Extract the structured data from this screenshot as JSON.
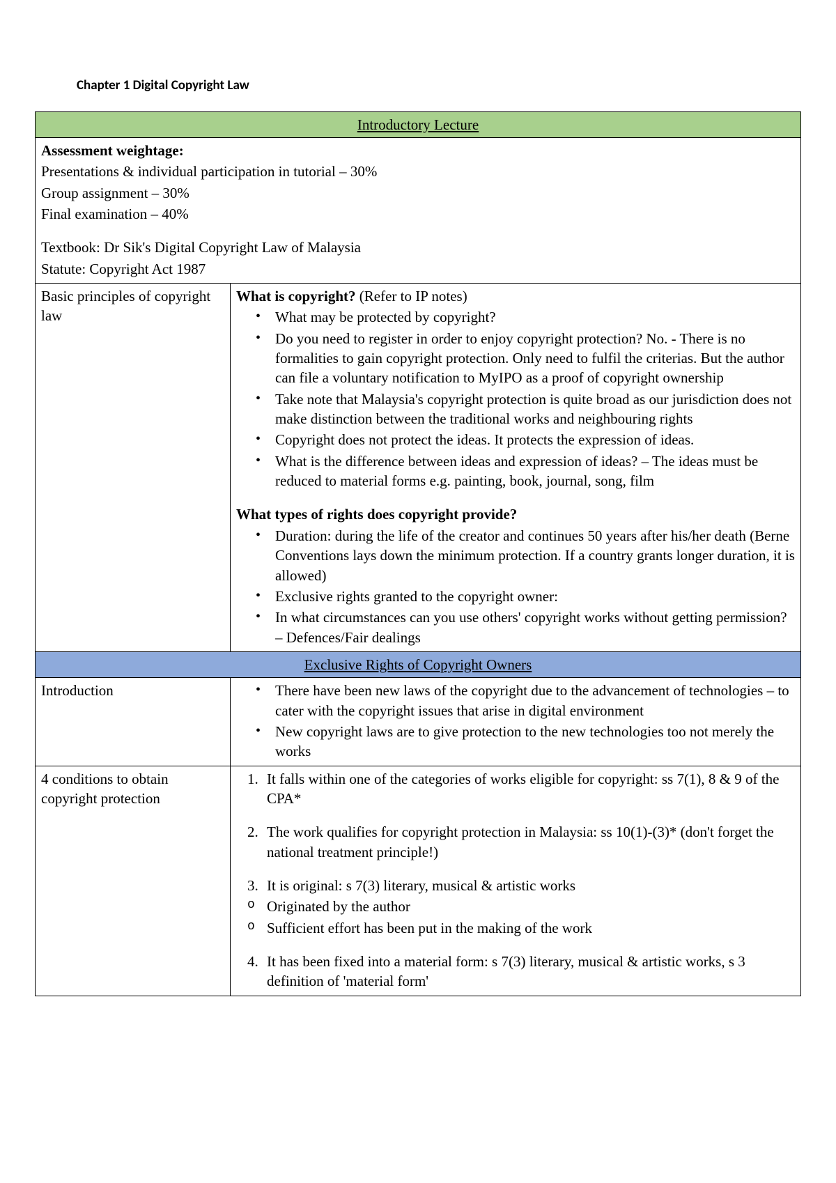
{
  "chapter_title": "Chapter 1 Digital Copyright Law",
  "section1": {
    "header": "Introductory Lecture",
    "assessment": {
      "title": "Assessment weightage:",
      "lines": [
        "Presentations & individual participation in tutorial – 30%",
        "Group assignment – 30%",
        "Final examination – 40%"
      ],
      "textbook": "Textbook: Dr Sik's Digital Copyright Law of Malaysia",
      "statute": "Statute: Copyright Act 1987"
    },
    "row1": {
      "left": "Basic principles of copyright law",
      "q1_title": "What is copyright?",
      "q1_suffix": " (Refer to IP notes)",
      "q1_bullets": [
        "What may be protected by copyright?",
        "Do you need to register in order to enjoy copyright protection? No. - There is no formalities to gain copyright protection. Only need to fulfil the criterias. But the author can file a voluntary notification to MyIPO as a proof of copyright ownership",
        "Take note that Malaysia's copyright protection is quite broad as our jurisdiction does not make distinction between the traditional works and neighbouring rights",
        "Copyright does not protect the ideas. It protects the expression of ideas.",
        "What is the difference between ideas and expression of ideas? – The ideas must be reduced to material forms e.g. painting, book, journal, song, film"
      ],
      "q2_title": "What types of rights does copyright provide?",
      "q2_bullets": [
        "Duration: during the life of the creator and continues 50 years after his/her death (Berne Conventions lays down the minimum protection. If a country grants longer duration, it is allowed)",
        "Exclusive rights granted to the copyright owner:",
        "In what circumstances can you use others' copyright works without getting permission? – Defences/Fair dealings"
      ]
    }
  },
  "section2": {
    "header": "Exclusive Rights of Copyright Owners",
    "row1": {
      "left": "Introduction",
      "bullets": [
        "There have been new laws of the copyright due to the advancement of technologies – to cater with the copyright issues that arise in digital environment",
        "New copyright laws are to give protection to the new technologies too not merely the works"
      ]
    },
    "row2": {
      "left": "4 conditions to obtain copyright protection",
      "item1": "It falls within one of the categories of works eligible for copyright: ss 7(1), 8 & 9 of the CPA*",
      "item2": "The work qualifies for copyright protection in Malaysia: ss 10(1)-(3)* (don't forget the national treatment principle!)",
      "item3": "It is original: s 7(3) literary, musical & artistic works",
      "item3_subs": [
        "Originated by the author",
        "Sufficient effort has been put in the making of the work"
      ],
      "item4": "It has been fixed into a material form: s 7(3) literary, musical & artistic works, s 3 definition of 'material form'"
    }
  },
  "colors": {
    "green": "#a8d08d",
    "blue": "#8eaadb",
    "border": "#000000",
    "bg": "#ffffff",
    "text": "#000000"
  }
}
